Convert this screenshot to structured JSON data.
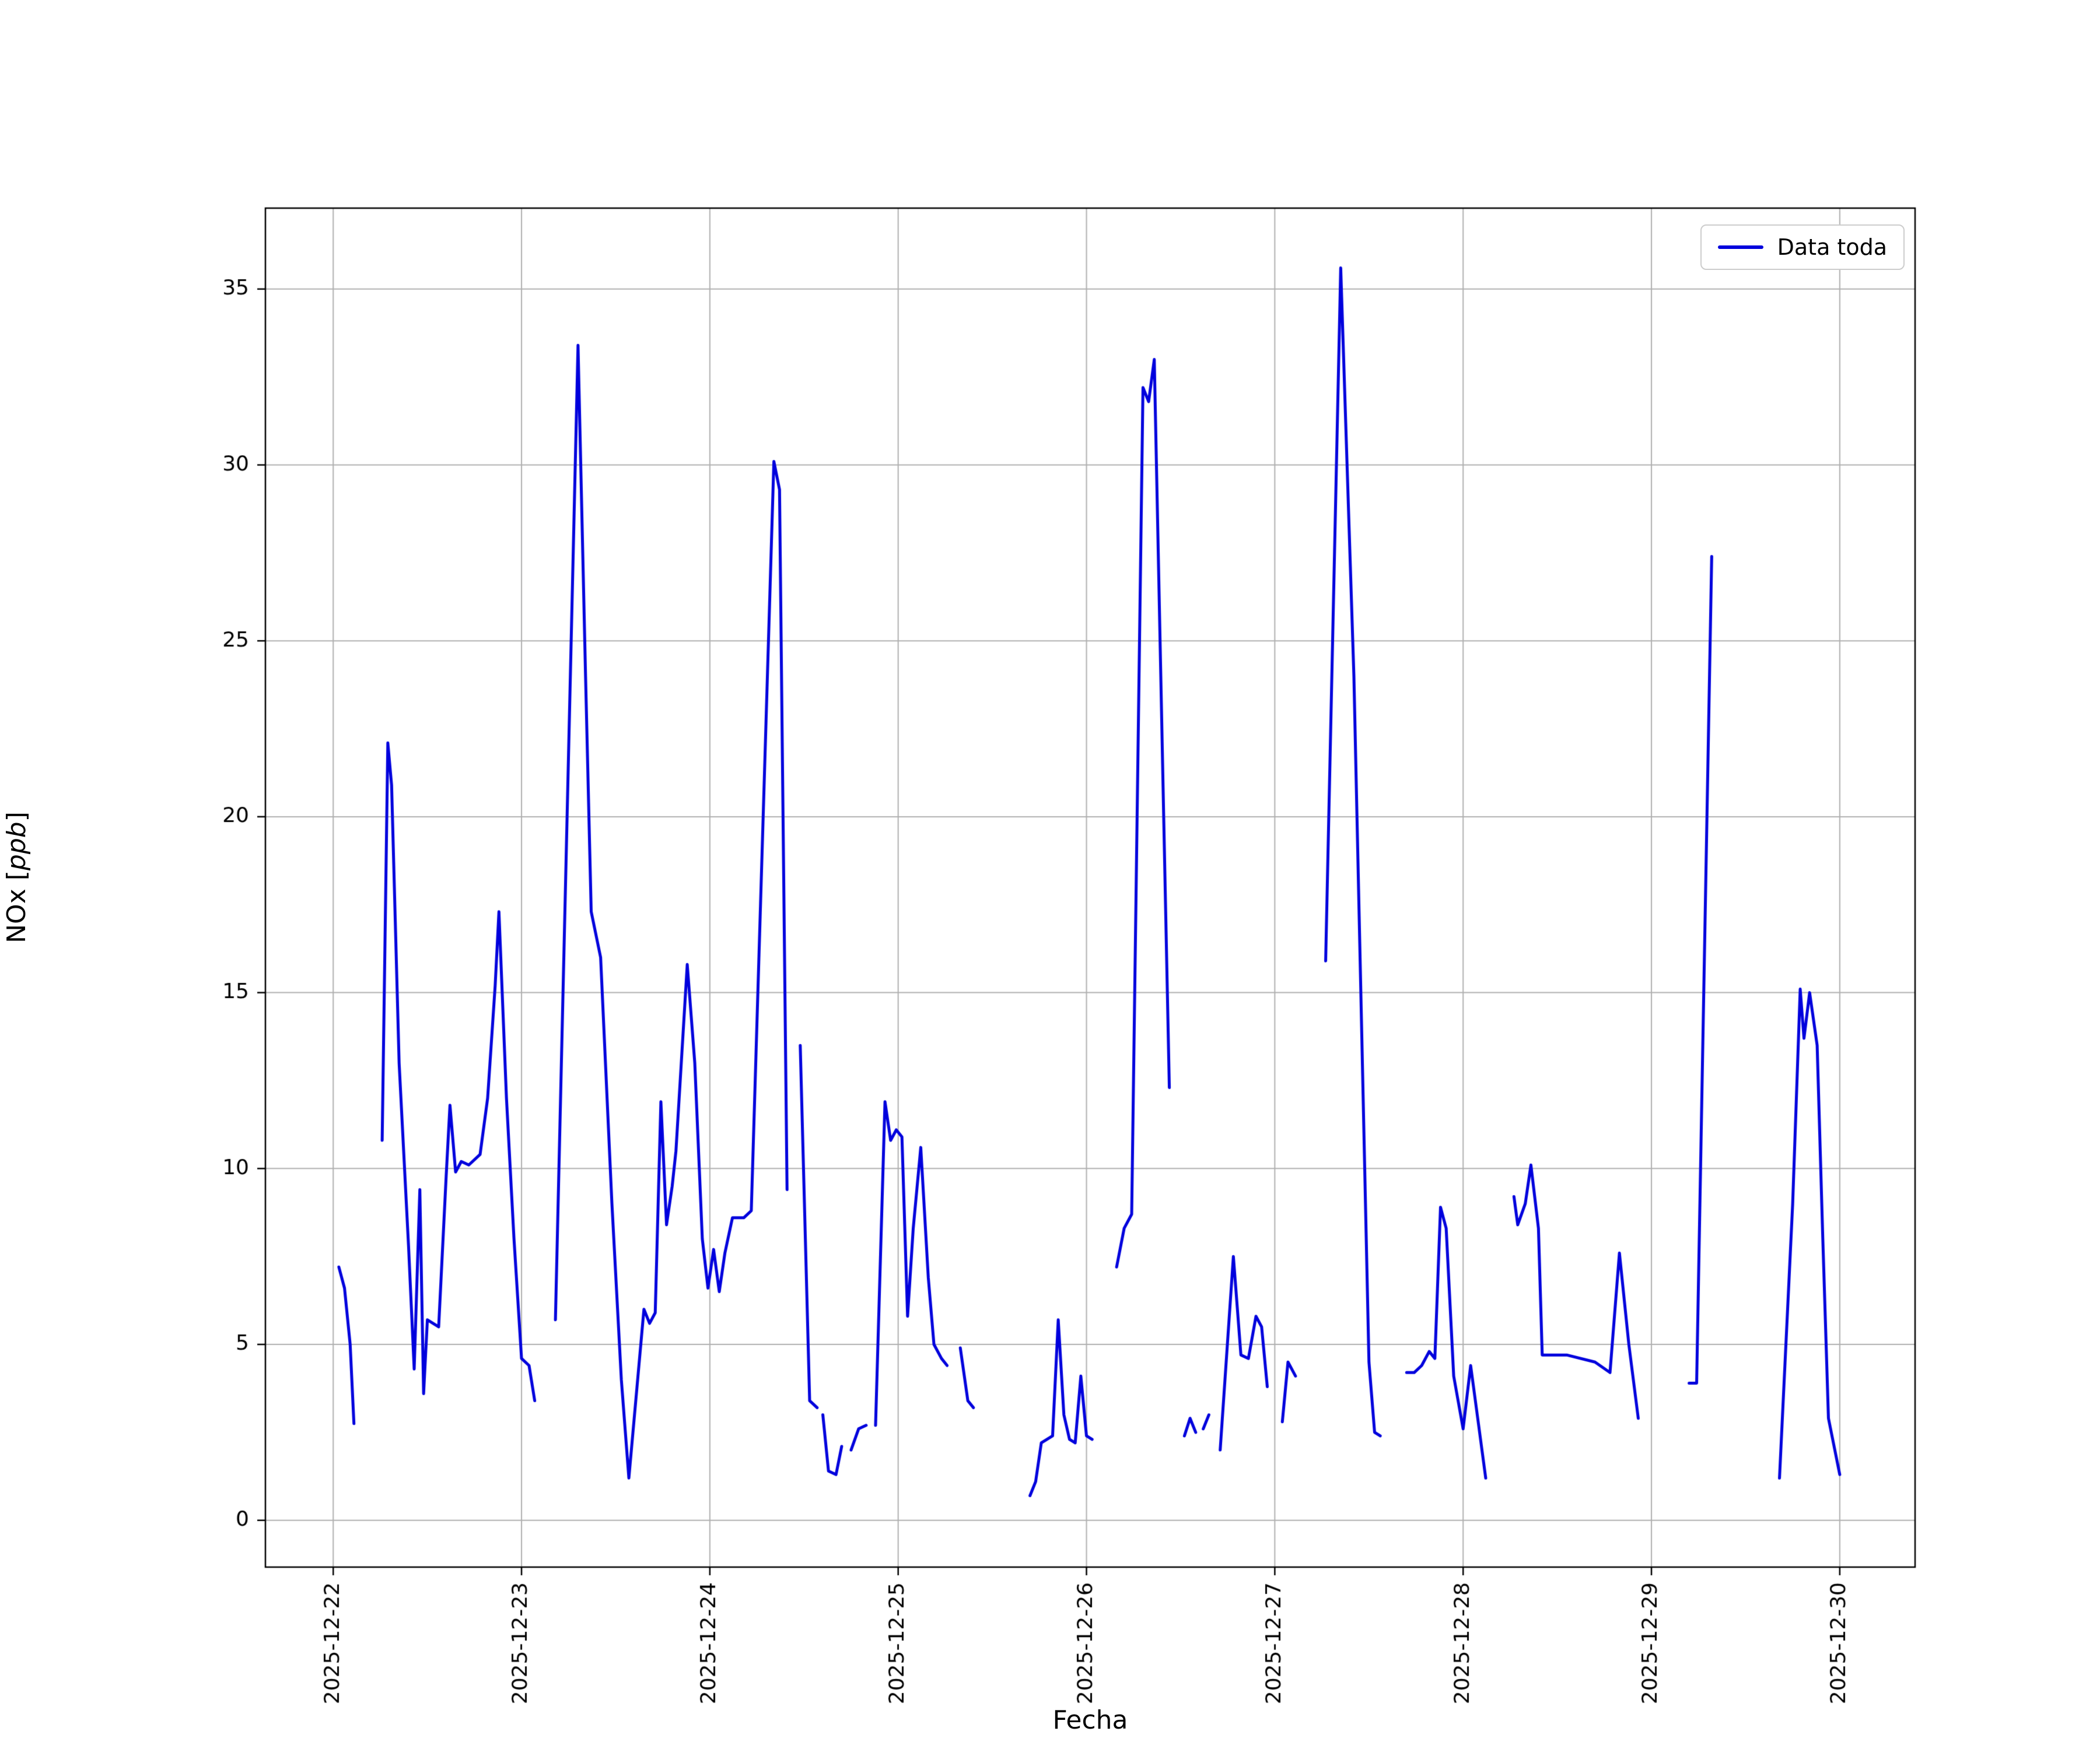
{
  "figure": {
    "xlabel": "Fecha",
    "ylabel_prefix": "NOx [",
    "ylabel_italic": "ppb",
    "ylabel_suffix": "]",
    "legend_label": "Data toda"
  },
  "chart_data": {
    "type": "line",
    "title": "",
    "xlabel": "Fecha",
    "ylabel": "NOx [ppb]",
    "legend": [
      "Data toda"
    ],
    "legend_position": "upper right",
    "grid": true,
    "line_color": "#0000dd",
    "grid_color": "#b0b0b0",
    "spine_color": "#000000",
    "tick_label_color": "#000000",
    "x_unit": "days since 2025-12-22 00:00",
    "x_tick_labels": [
      "2025-12-22",
      "2025-12-23",
      "2025-12-24",
      "2025-12-25",
      "2025-12-26",
      "2025-12-27",
      "2025-12-28",
      "2025-12-29",
      "2025-12-30"
    ],
    "x_tick_positions": [
      0,
      1,
      2,
      3,
      4,
      5,
      6,
      7,
      8
    ],
    "y_ticks": [
      0,
      5,
      10,
      15,
      20,
      25,
      30,
      35
    ],
    "xlim_days": [
      -0.36,
      8.4
    ],
    "ylim": [
      -1.33,
      37.3
    ],
    "points": [
      [
        0.03,
        7.2
      ],
      [
        0.06,
        6.6
      ],
      [
        0.09,
        5.0
      ],
      [
        0.11,
        2.75
      ],
      null,
      [
        0.26,
        10.8
      ],
      [
        0.29,
        22.1
      ],
      [
        0.31,
        20.9
      ],
      [
        0.35,
        13.0
      ],
      [
        0.4,
        7.8
      ],
      [
        0.43,
        4.3
      ],
      [
        0.46,
        9.4
      ],
      [
        0.48,
        3.6
      ],
      [
        0.5,
        5.7
      ],
      [
        0.53,
        5.6
      ],
      [
        0.56,
        5.5
      ],
      [
        0.6,
        9.8
      ],
      [
        0.62,
        11.8
      ],
      [
        0.65,
        9.9
      ],
      [
        0.68,
        10.2
      ],
      [
        0.72,
        10.1
      ],
      [
        0.78,
        10.4
      ],
      [
        0.82,
        12.0
      ],
      [
        0.86,
        15.2
      ],
      [
        0.88,
        17.3
      ],
      [
        0.92,
        12.0
      ],
      [
        0.96,
        8.0
      ],
      [
        1.0,
        4.6
      ],
      [
        1.04,
        4.4
      ],
      [
        1.07,
        3.4
      ],
      null,
      [
        1.18,
        5.7
      ],
      [
        1.3,
        33.4
      ],
      [
        1.34,
        24.0
      ],
      [
        1.37,
        17.3
      ],
      [
        1.42,
        16.0
      ],
      [
        1.48,
        9.0
      ],
      [
        1.53,
        4.0
      ],
      [
        1.57,
        1.2
      ],
      [
        1.62,
        4.2
      ],
      [
        1.65,
        6.0
      ],
      [
        1.68,
        5.6
      ],
      [
        1.71,
        5.9
      ],
      [
        1.74,
        11.9
      ],
      [
        1.77,
        8.4
      ],
      [
        1.8,
        9.5
      ],
      [
        1.82,
        10.5
      ],
      [
        1.88,
        15.8
      ],
      [
        1.92,
        13.0
      ],
      [
        1.96,
        8.0
      ],
      [
        1.99,
        6.6
      ],
      [
        2.02,
        7.7
      ],
      [
        2.05,
        6.5
      ],
      [
        2.08,
        7.6
      ],
      [
        2.12,
        8.6
      ],
      [
        2.18,
        8.6
      ],
      [
        2.22,
        8.8
      ],
      [
        2.34,
        30.1
      ],
      [
        2.37,
        29.3
      ],
      [
        2.41,
        9.4
      ],
      null,
      [
        2.48,
        13.5
      ],
      [
        2.53,
        3.4
      ],
      [
        2.57,
        3.2
      ],
      null,
      [
        2.6,
        3.0
      ],
      [
        2.63,
        1.4
      ],
      [
        2.67,
        1.3
      ],
      [
        2.7,
        2.1
      ],
      null,
      [
        2.75,
        2.0
      ],
      [
        2.79,
        2.6
      ],
      [
        2.83,
        2.7
      ],
      null,
      [
        2.88,
        2.7
      ],
      [
        2.93,
        11.9
      ],
      [
        2.96,
        10.8
      ],
      [
        2.99,
        11.1
      ],
      [
        3.02,
        10.9
      ],
      [
        3.05,
        5.8
      ],
      [
        3.08,
        8.3
      ],
      [
        3.12,
        10.6
      ],
      [
        3.16,
        6.9
      ],
      [
        3.19,
        5.0
      ],
      [
        3.23,
        4.6
      ],
      [
        3.26,
        4.4
      ],
      null,
      [
        3.33,
        4.9
      ],
      [
        3.37,
        3.4
      ],
      [
        3.4,
        3.2
      ],
      null,
      [
        3.7,
        0.7
      ],
      [
        3.73,
        1.1
      ],
      [
        3.76,
        2.2
      ],
      [
        3.79,
        2.3
      ],
      [
        3.82,
        2.4
      ],
      [
        3.85,
        5.7
      ],
      [
        3.88,
        3.0
      ],
      [
        3.91,
        2.3
      ],
      [
        3.94,
        2.2
      ],
      [
        3.97,
        4.1
      ],
      [
        4.0,
        2.4
      ],
      [
        4.03,
        2.3
      ],
      null,
      [
        4.16,
        7.2
      ],
      [
        4.2,
        8.3
      ],
      [
        4.24,
        8.7
      ],
      [
        4.3,
        32.2
      ],
      [
        4.33,
        31.8
      ],
      [
        4.36,
        33.0
      ],
      [
        4.41,
        20.0
      ],
      [
        4.44,
        12.3
      ],
      null,
      [
        4.52,
        2.4
      ],
      [
        4.55,
        2.9
      ],
      [
        4.58,
        2.5
      ],
      null,
      [
        4.62,
        2.6
      ],
      [
        4.65,
        3.0
      ],
      null,
      [
        4.71,
        2.0
      ],
      [
        4.78,
        7.5
      ],
      [
        4.82,
        4.7
      ],
      [
        4.86,
        4.6
      ],
      [
        4.9,
        5.8
      ],
      [
        4.93,
        5.5
      ],
      [
        4.96,
        3.8
      ],
      null,
      [
        5.04,
        2.8
      ],
      [
        5.07,
        4.5
      ],
      [
        5.11,
        4.1
      ],
      null,
      [
        5.27,
        15.9
      ],
      [
        5.35,
        35.6
      ],
      [
        5.42,
        24.0
      ],
      [
        5.5,
        4.5
      ],
      [
        5.53,
        2.5
      ],
      [
        5.56,
        2.4
      ],
      null,
      [
        5.7,
        4.2
      ],
      [
        5.74,
        4.2
      ],
      [
        5.78,
        4.4
      ],
      [
        5.82,
        4.8
      ],
      [
        5.85,
        4.6
      ],
      [
        5.88,
        8.9
      ],
      [
        5.91,
        8.3
      ],
      [
        5.95,
        4.1
      ],
      [
        6.0,
        2.6
      ],
      [
        6.04,
        4.4
      ],
      [
        6.08,
        2.8
      ],
      [
        6.12,
        1.2
      ],
      null,
      [
        6.27,
        9.2
      ],
      [
        6.29,
        8.4
      ],
      [
        6.33,
        9.0
      ],
      [
        6.36,
        10.1
      ],
      [
        6.4,
        8.3
      ],
      [
        6.42,
        4.7
      ],
      [
        6.55,
        4.7
      ],
      [
        6.7,
        4.5
      ],
      [
        6.78,
        4.2
      ],
      [
        6.83,
        7.6
      ],
      [
        6.88,
        5.0
      ],
      [
        6.93,
        2.9
      ],
      null,
      [
        7.2,
        3.9
      ],
      [
        7.24,
        3.9
      ],
      [
        7.32,
        27.4
      ],
      null,
      [
        7.68,
        1.2
      ],
      [
        7.75,
        9.0
      ],
      [
        7.79,
        15.1
      ],
      [
        7.81,
        13.7
      ],
      [
        7.84,
        15.0
      ],
      [
        7.88,
        13.5
      ],
      [
        7.91,
        8.0
      ],
      [
        7.94,
        2.9
      ],
      [
        7.97,
        2.1
      ],
      [
        8.0,
        1.3
      ]
    ]
  }
}
